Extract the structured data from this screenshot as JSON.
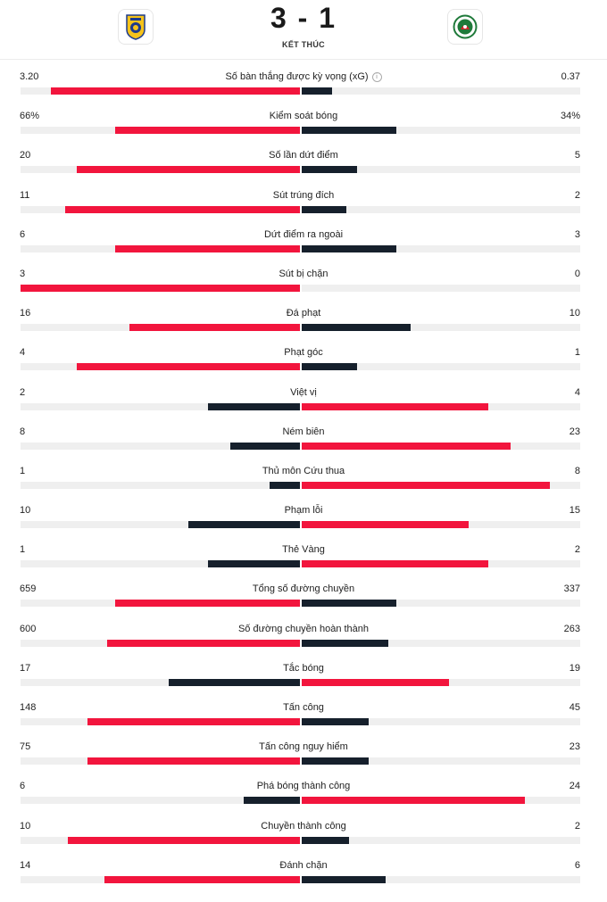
{
  "match": {
    "home_logo": "al-nassr-crest-icon",
    "away_logo": "al-ettifaq-crest-icon",
    "score": "3 - 1",
    "status": "KẾT THÚC"
  },
  "colors": {
    "leading": "#f2153d",
    "trailing": "#16202c",
    "track": "#efefef"
  },
  "stats": [
    {
      "label": "Số bàn thắng được kỳ vọng (xG)",
      "home": "3.20",
      "away": "0.37",
      "info": true,
      "home_bar": 0.89,
      "away_bar": 0.11
    },
    {
      "label": "Kiểm soát bóng",
      "home": "66%",
      "away": "34%",
      "home_bar": 0.66,
      "away_bar": 0.34
    },
    {
      "label": "Số lần dứt điểm",
      "home": "20",
      "away": "5",
      "home_bar": 0.8,
      "away_bar": 0.2
    },
    {
      "label": "Sút trúng đích",
      "home": "11",
      "away": "2",
      "home_bar": 0.84,
      "away_bar": 0.16
    },
    {
      "label": "Dứt điểm ra ngoài",
      "home": "6",
      "away": "3",
      "home_bar": 0.66,
      "away_bar": 0.34
    },
    {
      "label": "Sút bị chặn",
      "home": "3",
      "away": "0",
      "home_bar": 1.0,
      "away_bar": 0.0
    },
    {
      "label": "Đá phạt",
      "home": "16",
      "away": "10",
      "home_bar": 0.61,
      "away_bar": 0.39
    },
    {
      "label": "Phạt góc",
      "home": "4",
      "away": "1",
      "home_bar": 0.8,
      "away_bar": 0.2
    },
    {
      "label": "Việt vị",
      "home": "2",
      "away": "4",
      "home_bar": 0.33,
      "away_bar": 0.67
    },
    {
      "label": "Ném biên",
      "home": "8",
      "away": "23",
      "home_bar": 0.25,
      "away_bar": 0.75
    },
    {
      "label": "Thủ môn Cứu thua",
      "home": "1",
      "away": "8",
      "home_bar": 0.11,
      "away_bar": 0.89
    },
    {
      "label": "Phạm lỗi",
      "home": "10",
      "away": "15",
      "home_bar": 0.4,
      "away_bar": 0.6
    },
    {
      "label": "Thẻ Vàng",
      "home": "1",
      "away": "2",
      "home_bar": 0.33,
      "away_bar": 0.67
    },
    {
      "label": "Tổng số đường chuyền",
      "home": "659",
      "away": "337",
      "home_bar": 0.66,
      "away_bar": 0.34
    },
    {
      "label": "Số đường chuyền hoàn thành",
      "home": "600",
      "away": "263",
      "home_bar": 0.69,
      "away_bar": 0.31
    },
    {
      "label": "Tắc bóng",
      "home": "17",
      "away": "19",
      "home_bar": 0.47,
      "away_bar": 0.53
    },
    {
      "label": "Tấn công",
      "home": "148",
      "away": "45",
      "home_bar": 0.76,
      "away_bar": 0.24
    },
    {
      "label": "Tấn công nguy hiểm",
      "home": "75",
      "away": "23",
      "home_bar": 0.76,
      "away_bar": 0.24
    },
    {
      "label": "Phá bóng thành công",
      "home": "6",
      "away": "24",
      "home_bar": 0.2,
      "away_bar": 0.8
    },
    {
      "label": "Chuyền thành công",
      "home": "10",
      "away": "2",
      "home_bar": 0.83,
      "away_bar": 0.17
    },
    {
      "label": "Đánh chặn",
      "home": "14",
      "away": "6",
      "home_bar": 0.7,
      "away_bar": 0.3
    }
  ]
}
